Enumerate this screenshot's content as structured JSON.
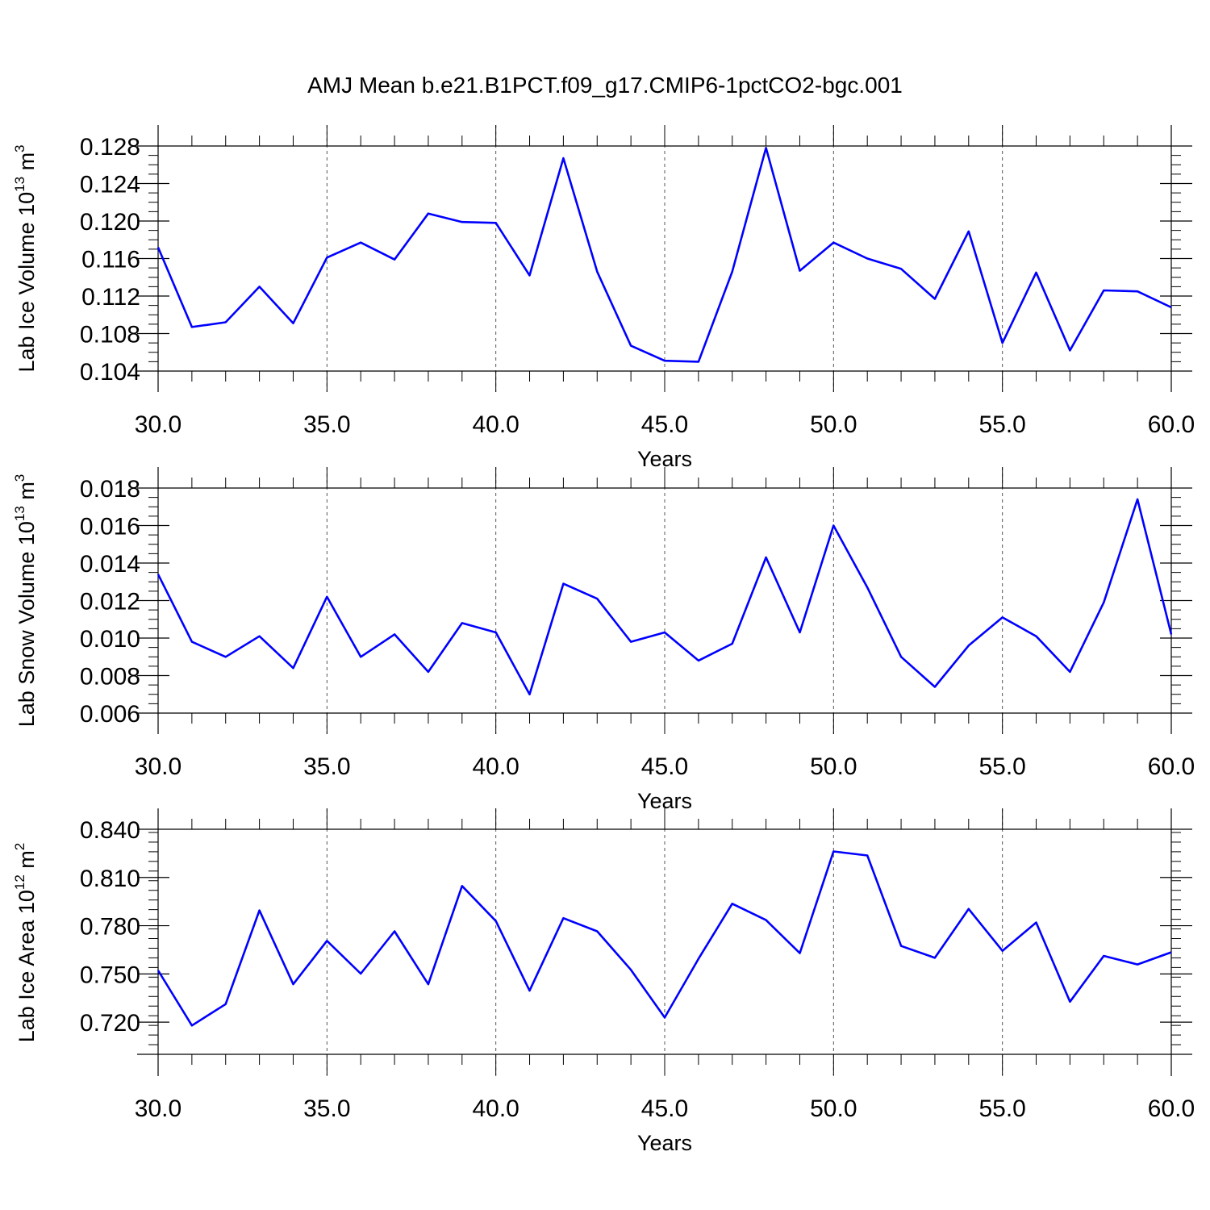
{
  "title": "AMJ Mean b.e21.B1PCT.f09_g17.CMIP6-1pctCO2-bgc.001",
  "colors": {
    "line": "#0000ff",
    "axis": "#000000",
    "grid": "#555555"
  },
  "chart_data": [
    {
      "type": "line",
      "xlabel": "Years",
      "ylabel_main": "Lab Ice Volume 10",
      "ylabel_sup": "13",
      "ylabel_unit": " m",
      "ylabel_unit_sup": "3",
      "xlim": [
        30,
        60
      ],
      "ylim": [
        0.104,
        0.128
      ],
      "x_ticks": [
        30,
        35,
        40,
        45,
        50,
        55,
        60
      ],
      "x_tick_labels": [
        "30.0",
        "35.0",
        "40.0",
        "45.0",
        "50.0",
        "55.0",
        "60.0"
      ],
      "y_ticks": [
        0.104,
        0.108,
        0.112,
        0.116,
        0.12,
        0.124,
        0.128
      ],
      "y_tick_labels": [
        "0.104",
        "0.108",
        "0.112",
        "0.116",
        "0.120",
        "0.124",
        "0.128"
      ],
      "y_minor_step": 0.001,
      "grid_x": true,
      "x": [
        30,
        31,
        32,
        33,
        34,
        35,
        36,
        37,
        38,
        39,
        40,
        41,
        42,
        43,
        44,
        45,
        46,
        47,
        48,
        49,
        50,
        51,
        52,
        53,
        54,
        55,
        56,
        57,
        58,
        59,
        60
      ],
      "values": [
        0.1172,
        0.1087,
        0.1092,
        0.113,
        0.1091,
        0.1161,
        0.1177,
        0.1159,
        0.1208,
        0.1199,
        0.1198,
        0.1142,
        0.1267,
        0.1146,
        0.1067,
        0.1051,
        0.105,
        0.1146,
        0.1278,
        0.1147,
        0.1177,
        0.116,
        0.1149,
        0.1117,
        0.1189,
        0.107,
        0.1145,
        0.1062,
        0.1126,
        0.1125,
        0.1108
      ]
    },
    {
      "type": "line",
      "xlabel": "Years",
      "ylabel_main": "Lab Snow Volume 10",
      "ylabel_sup": "13",
      "ylabel_unit": " m",
      "ylabel_unit_sup": "3",
      "xlim": [
        30,
        60
      ],
      "ylim": [
        0.006,
        0.018
      ],
      "x_ticks": [
        30,
        35,
        40,
        45,
        50,
        55,
        60
      ],
      "x_tick_labels": [
        "30.0",
        "35.0",
        "40.0",
        "45.0",
        "50.0",
        "55.0",
        "60.0"
      ],
      "y_ticks": [
        0.006,
        0.008,
        0.01,
        0.012,
        0.014,
        0.016,
        0.018
      ],
      "y_tick_labels": [
        "0.006",
        "0.008",
        "0.010",
        "0.012",
        "0.014",
        "0.016",
        "0.018"
      ],
      "y_minor_step": 0.0005,
      "grid_x": true,
      "x": [
        30,
        31,
        32,
        33,
        34,
        35,
        36,
        37,
        38,
        39,
        40,
        41,
        42,
        43,
        44,
        45,
        46,
        47,
        48,
        49,
        50,
        51,
        52,
        53,
        54,
        55,
        56,
        57,
        58,
        59,
        60
      ],
      "values": [
        0.0134,
        0.0098,
        0.009,
        0.0101,
        0.0084,
        0.0122,
        0.009,
        0.0102,
        0.0082,
        0.0108,
        0.0103,
        0.007,
        0.0129,
        0.0121,
        0.0098,
        0.0103,
        0.0088,
        0.0097,
        0.0143,
        0.0103,
        0.016,
        0.0127,
        0.009,
        0.0074,
        0.0096,
        0.0111,
        0.0101,
        0.0082,
        0.0119,
        0.0174,
        0.0102
      ]
    },
    {
      "type": "line",
      "xlabel": "Years",
      "ylabel_main": "Lab Ice Area 10",
      "ylabel_sup": "12",
      "ylabel_unit": " m",
      "ylabel_unit_sup": "2",
      "xlim": [
        30,
        60
      ],
      "ylim": [
        0.7,
        0.84
      ],
      "x_ticks": [
        30,
        35,
        40,
        45,
        50,
        55,
        60
      ],
      "x_tick_labels": [
        "30.0",
        "35.0",
        "40.0",
        "45.0",
        "50.0",
        "55.0",
        "60.0"
      ],
      "y_ticks": [
        0.72,
        0.75,
        0.78,
        0.81,
        0.84
      ],
      "y_tick_labels": [
        "0.720",
        "0.750",
        "0.780",
        "0.810",
        "0.840"
      ],
      "y_minor_step": 0.006,
      "grid_x": true,
      "x": [
        30,
        31,
        32,
        33,
        34,
        35,
        36,
        37,
        38,
        39,
        40,
        41,
        42,
        43,
        44,
        45,
        46,
        47,
        48,
        49,
        50,
        51,
        52,
        53,
        54,
        55,
        56,
        57,
        58,
        59,
        60
      ],
      "values": [
        0.7522,
        0.7179,
        0.7312,
        0.7895,
        0.7436,
        0.7706,
        0.7502,
        0.7765,
        0.7436,
        0.8047,
        0.7829,
        0.7396,
        0.7847,
        0.7765,
        0.7526,
        0.7229,
        0.7594,
        0.7937,
        0.7835,
        0.7629,
        0.8262,
        0.8237,
        0.7674,
        0.76,
        0.7904,
        0.7644,
        0.782,
        0.7327,
        0.7612,
        0.7559,
        0.7635
      ]
    }
  ]
}
